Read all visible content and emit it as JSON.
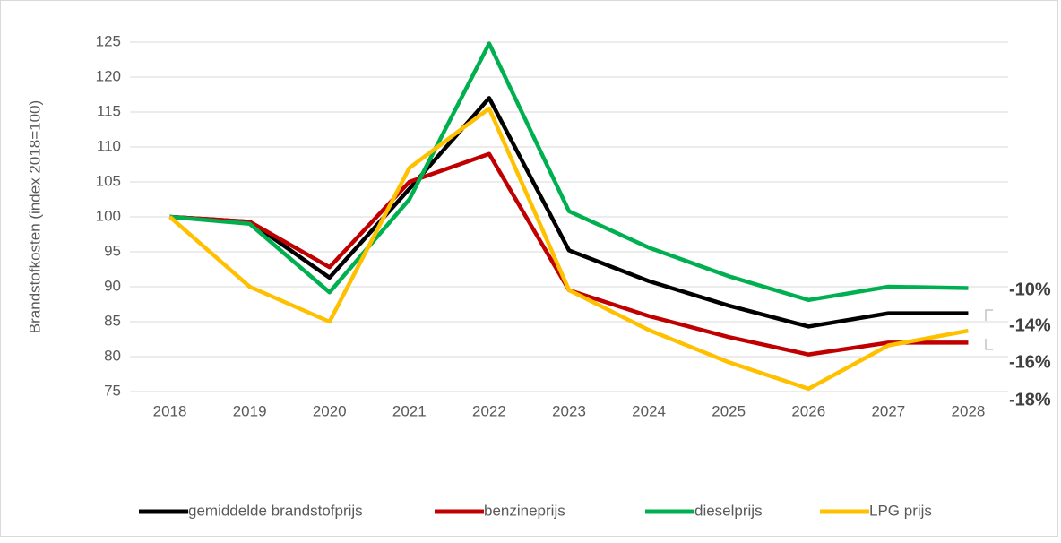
{
  "chart_data": {
    "type": "line",
    "y_label": "Brandstofkosten (index 2018=100)",
    "categories": [
      "2018",
      "2019",
      "2020",
      "2021",
      "2022",
      "2023",
      "2024",
      "2025",
      "2026",
      "2027",
      "2028"
    ],
    "series": [
      {
        "name": "gemiddelde brandstofprijs",
        "color": "#000000",
        "values": [
          100,
          99.3,
          91.3,
          104,
          117,
          95.2,
          90.8,
          87.3,
          84.3,
          86.2,
          86.2
        ]
      },
      {
        "name": "benzineprijs",
        "color": "#c00000",
        "values": [
          100,
          99.3,
          92.8,
          105,
          109,
          89.5,
          85.8,
          82.8,
          80.3,
          82,
          82
        ]
      },
      {
        "name": "dieselprijs",
        "color": "#00b050",
        "values": [
          100,
          99,
          89.2,
          102.5,
          124.8,
          100.8,
          95.6,
          91.5,
          88.1,
          90,
          89.8
        ]
      },
      {
        "name": "LPG prijs",
        "color": "#ffc000",
        "values": [
          100,
          90,
          85,
          107,
          115.5,
          89.5,
          83.8,
          79.2,
          75.4,
          81.6,
          83.7
        ]
      }
    ],
    "annotations": [
      "-10%",
      "-14%",
      "-16%",
      "-18%"
    ],
    "ylim": [
      75,
      125
    ],
    "yticks": [
      75,
      80,
      85,
      90,
      95,
      100,
      105,
      110,
      115,
      120,
      125
    ],
    "grid": true
  }
}
